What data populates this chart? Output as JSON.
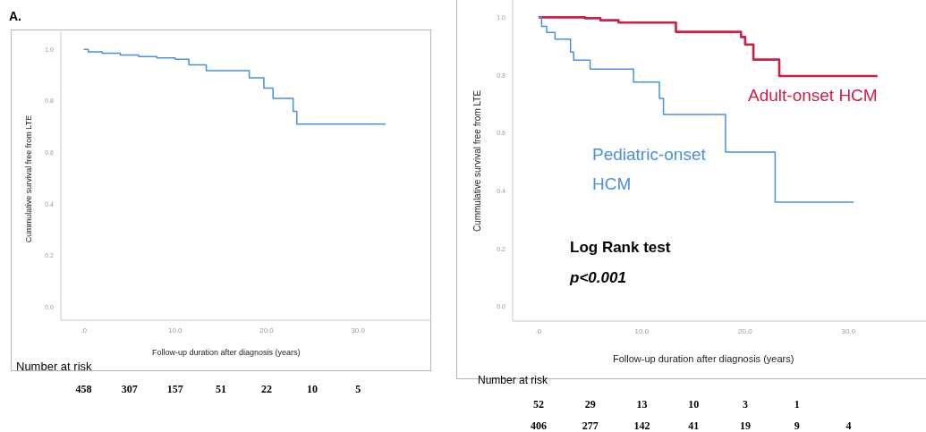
{
  "chart_data": [
    {
      "type": "step",
      "title": "A.",
      "xlabel": "Follow-up duration after diagnosis (years)",
      "ylabel": "Cummulative survival free from LTE",
      "series": [
        {
          "color": "#4a8fe0",
          "x": [
            0,
            0.5,
            2,
            4,
            6,
            8,
            10,
            11.5,
            13.4,
            18.1,
            19.7,
            20.7,
            22.9,
            23.3,
            33.0
          ],
          "values": [
            1.0,
            0.99,
            0.985,
            0.978,
            0.972,
            0.967,
            0.962,
            0.94,
            0.917,
            0.89,
            0.85,
            0.81,
            0.76,
            0.71,
            0.71
          ]
        }
      ],
      "xlim": [
        -2.5,
        38
      ],
      "xticks": [
        {
          "value": 0,
          "label": ".0"
        },
        {
          "value": 10,
          "label": "10.0"
        },
        {
          "value": 20,
          "label": "20.0"
        },
        {
          "value": 30,
          "label": "30.0"
        }
      ],
      "ylim": [
        -0.05,
        1.07
      ],
      "yticks": [
        {
          "value": 0,
          "label": "0.0"
        },
        {
          "value": 0.2,
          "label": "0.2"
        },
        {
          "value": 0.4,
          "label": "0.4"
        },
        {
          "value": 0.6,
          "label": "0.6"
        },
        {
          "value": 0.8,
          "label": "0.8"
        },
        {
          "value": 1,
          "label": "1.0"
        }
      ],
      "annotations": [
        "Number at risk",
        "458 307 157 51 22 10 5"
      ]
    },
    {
      "type": "step",
      "xlabel": "Follow-up duration after diagnosis (years)",
      "ylabel": "Cummulative survival free from LTE",
      "series": [
        {
          "name": "Adult-onset HCM",
          "color": "#d21c40",
          "x": [
            0,
            4.5,
            6.0,
            7.75,
            13.3,
            19.6,
            20.0,
            20.8,
            23.3,
            32.8
          ],
          "values": [
            1.0,
            0.997,
            0.99,
            0.982,
            0.95,
            0.932,
            0.906,
            0.854,
            0.797,
            0.797
          ]
        },
        {
          "name": "Pediatric-onset HCM",
          "color": "#4a90e2",
          "x": [
            0,
            0.3,
            0.8,
            1.6,
            3.1,
            3.4,
            5.0,
            9.2,
            11.7,
            12.1,
            18.1,
            22.9,
            30.5
          ],
          "values": [
            1.0,
            0.969,
            0.948,
            0.925,
            0.88,
            0.852,
            0.821,
            0.776,
            0.72,
            0.664,
            0.534,
            0.361,
            0.361
          ]
        }
      ],
      "xlim": [
        -2.5,
        37.5
      ],
      "xticks": [
        {
          "value": 0,
          "label": ".0"
        },
        {
          "value": 10,
          "label": "10.0"
        },
        {
          "value": 20,
          "label": "20.0"
        },
        {
          "value": 30,
          "label": "30.0"
        }
      ],
      "ylim": [
        -0.05,
        1.06
      ],
      "yticks": [
        {
          "value": 0,
          "label": "0.0"
        },
        {
          "value": 0.2,
          "label": "0.2"
        },
        {
          "value": 0.4,
          "label": "0.4"
        },
        {
          "value": 0.6,
          "label": "0.6"
        },
        {
          "value": 0.8,
          "label": "0.8"
        },
        {
          "value": 1,
          "label": "1.0"
        }
      ],
      "annotations": [
        "Log Rank test",
        "p<0.001",
        "Number at risk",
        "52 29 13 10 3 1",
        "406 277 142 41 19 9 4"
      ]
    }
  ]
}
